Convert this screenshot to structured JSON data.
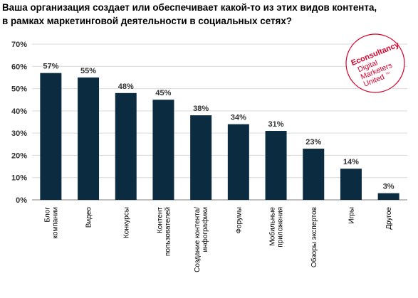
{
  "title": {
    "line1": "Ваша организация создает или обеспечивает какой-то из этих видов контента,",
    "line2": "в рамках маркетинговой деятельности в социальных сетях?"
  },
  "logo": {
    "line1": "Econsultancy",
    "line2": "Digital",
    "line3": "Marketers",
    "line4": "United",
    "tm": "TM",
    "color": "#d6002a"
  },
  "colors": {
    "bar": "#0b2c40",
    "grid": "#d9d9d9",
    "axis": "#808080"
  },
  "chart_data": {
    "type": "bar",
    "categories": [
      [
        "Блог",
        "компании"
      ],
      [
        "Видео"
      ],
      [
        "Конкурсы"
      ],
      [
        "Контент",
        "пользователей"
      ],
      [
        "Создание контента/",
        "инфографики"
      ],
      [
        "Форумы"
      ],
      [
        "Мобильные",
        "приложения"
      ],
      [
        "Обзоры экспертов"
      ],
      [
        "Игры"
      ],
      [
        "Другое"
      ]
    ],
    "values": [
      57,
      55,
      48,
      45,
      38,
      34,
      31,
      23,
      14,
      3
    ],
    "value_labels": [
      "57%",
      "55%",
      "48%",
      "45%",
      "38%",
      "34%",
      "31%",
      "23%",
      "14%",
      "3%"
    ],
    "ylim": [
      0,
      70
    ],
    "yticks": [
      0,
      10,
      20,
      30,
      40,
      50,
      60,
      70
    ],
    "ytick_labels": [
      "0%",
      "10%",
      "20%",
      "30%",
      "40%",
      "50%",
      "60%",
      "70%"
    ],
    "grid": true
  }
}
